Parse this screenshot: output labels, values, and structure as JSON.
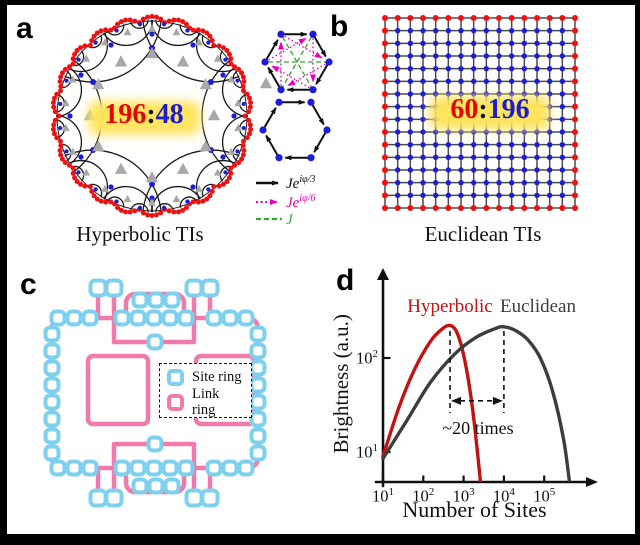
{
  "panel_a": {
    "letter": "a",
    "caption": "Hyperbolic TIs",
    "ratio": {
      "boundary": "196",
      "separator": ":",
      "bulk": "48"
    },
    "colors": {
      "boundary_site": "#ee1111",
      "bulk_site": "#1d1dd8",
      "arc": "#1a1a1a",
      "triangle": "#a8a8a8",
      "halo": "#ffe45e",
      "ratio_red": "#e10600",
      "ratio_blue": "#1d1dcf",
      "nnn": "#ee00bb",
      "diag": "#3aa23a",
      "edge": "#111111"
    },
    "legend": [
      {
        "name": "nearest-neighbor-hopping",
        "style": "solid-arrow",
        "color": "#111111",
        "label_base": "Je",
        "label_sup": "iφ/3"
      },
      {
        "name": "next-nearest-neighbor-hopping",
        "style": "dotted-arrow",
        "color": "#ee00bb",
        "label_base": "Je",
        "label_sup": "iφ/6"
      },
      {
        "name": "diagonal-coupling",
        "style": "dashed-line",
        "color": "#3aa23a",
        "label_base": "J",
        "label_sup": ""
      }
    ]
  },
  "panel_b": {
    "letter": "b",
    "caption": "Euclidean TIs",
    "ratio": {
      "boundary": "60",
      "separator": ":",
      "bulk": "196"
    },
    "grid": {
      "rows": 16,
      "cols": 16
    },
    "colors": {
      "boundary_site": "#ee1111",
      "bulk_site": "#1d1dd8",
      "line": "#4a4a4a",
      "halo": "#ffe45e",
      "ratio_red": "#e10600",
      "ratio_blue": "#1d1dcf"
    }
  },
  "panel_c": {
    "letter": "c",
    "legend": {
      "site_label": "Site ring",
      "link_label": "Link ring"
    },
    "colors": {
      "site": "#7fd0ee",
      "link": "#ef7bab"
    }
  },
  "panel_d": {
    "letter": "d"
  },
  "chart_data": {
    "type": "line",
    "title": "",
    "xlabel": "Number of Sites",
    "ylabel": "Brightness (a.u.)",
    "x_scale": "log",
    "y_scale": "log",
    "xlim": [
      10,
      1000000
    ],
    "ylim": [
      5,
      400
    ],
    "x_ticks": [
      10,
      100,
      1000,
      10000,
      100000
    ],
    "y_ticks": [
      10,
      100
    ],
    "grid": false,
    "legend_position": "top",
    "series": [
      {
        "name": "Hyperbolic",
        "color": "#c41111",
        "points": [
          [
            10,
            9
          ],
          [
            25,
            30
          ],
          [
            60,
            75
          ],
          [
            150,
            150
          ],
          [
            300,
            205
          ],
          [
            460,
            222
          ],
          [
            650,
            195
          ],
          [
            900,
            130
          ],
          [
            1300,
            60
          ],
          [
            1800,
            22
          ],
          [
            2600,
            5
          ]
        ]
      },
      {
        "name": "Euclidean",
        "color": "#3d3d3d",
        "points": [
          [
            10,
            8.5
          ],
          [
            40,
            22
          ],
          [
            150,
            55
          ],
          [
            600,
            110
          ],
          [
            2000,
            165
          ],
          [
            6000,
            205
          ],
          [
            10000,
            215
          ],
          [
            20000,
            195
          ],
          [
            40000,
            155
          ],
          [
            80000,
            100
          ],
          [
            160000,
            45
          ],
          [
            300000,
            14
          ],
          [
            420000,
            5
          ]
        ]
      }
    ],
    "annotation": {
      "text": "~20 times",
      "from_x": 460,
      "to_x": 10000,
      "arrow_y": 35
    }
  }
}
